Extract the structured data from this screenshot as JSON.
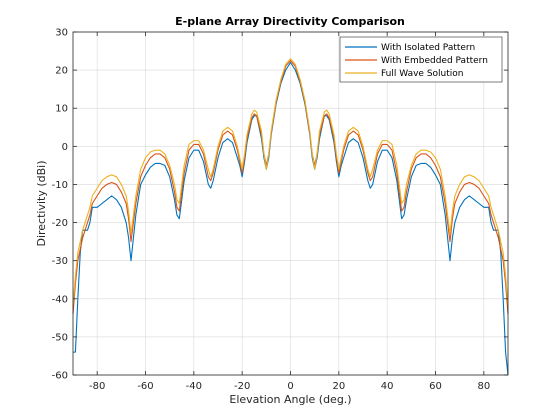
{
  "chart_data": {
    "type": "line",
    "title": "E-plane Array Directivity Comparison",
    "xlabel": "Elevation Angle (deg.)",
    "ylabel": "Directivity (dBi)",
    "xlim": [
      -90,
      90
    ],
    "ylim": [
      -60,
      30
    ],
    "xticks": [
      -80,
      -60,
      -40,
      -20,
      0,
      20,
      40,
      60,
      80
    ],
    "yticks": [
      -60,
      -50,
      -40,
      -30,
      -20,
      -10,
      0,
      10,
      20,
      30
    ],
    "grid": true,
    "legend_position": "top-right",
    "x": [
      -90,
      -89,
      -88,
      -87,
      -86,
      -85,
      -84,
      -83,
      -82,
      -80,
      -78,
      -76,
      -74,
      -72,
      -70,
      -68,
      -67,
      -66,
      -65,
      -64,
      -62,
      -60,
      -58,
      -56,
      -54,
      -52,
      -50,
      -48,
      -47,
      -46,
      -45,
      -44,
      -42,
      -40,
      -38,
      -36,
      -34,
      -33,
      -32,
      -30,
      -28,
      -26,
      -24,
      -22,
      -21,
      -20,
      -19,
      -18,
      -16,
      -15,
      -14,
      -12,
      -11,
      -10,
      -9,
      -8,
      -6,
      -4,
      -2,
      0,
      2,
      4,
      6,
      8,
      9,
      10,
      11,
      12,
      14,
      15,
      16,
      18,
      19,
      20,
      21,
      22,
      24,
      26,
      28,
      30,
      32,
      33,
      34,
      36,
      38,
      40,
      42,
      44,
      45,
      46,
      47,
      48,
      50,
      52,
      54,
      56,
      58,
      60,
      62,
      64,
      65,
      66,
      67,
      68,
      70,
      72,
      74,
      76,
      78,
      80,
      82,
      83,
      84,
      85,
      86,
      87,
      88,
      89,
      90
    ],
    "series": [
      {
        "name": "With Isolated Pattern",
        "color": "#0072BD",
        "values": [
          -54,
          -54,
          -40,
          -28,
          -22,
          -22,
          -22,
          -20,
          -16,
          -16,
          -15,
          -14,
          -13,
          -14,
          -16,
          -20,
          -24,
          -30,
          -24,
          -18,
          -10,
          -7.5,
          -5.5,
          -4.5,
          -4.5,
          -5,
          -8,
          -14,
          -18,
          -19,
          -14,
          -9,
          -3,
          -1,
          -1,
          -4,
          -10,
          -11,
          -9,
          -3,
          1,
          2,
          1,
          -3,
          -5,
          -8,
          -4,
          1,
          7,
          8,
          8,
          2,
          -3,
          -6,
          -3,
          3,
          11,
          16.5,
          20,
          22,
          20,
          16.5,
          11,
          3,
          -3,
          -6,
          -3,
          2,
          8,
          8,
          7,
          1,
          -4,
          -8,
          -5,
          -3,
          1,
          2,
          1,
          -3,
          -9,
          -11,
          -10,
          -4,
          -1,
          -1,
          -3,
          -9,
          -14,
          -19,
          -18,
          -14,
          -8,
          -5,
          -4.5,
          -4.5,
          -5.5,
          -7.5,
          -10,
          -18,
          -24,
          -30,
          -24,
          -20,
          -16,
          -14,
          -13,
          -14,
          -15,
          -16,
          -16,
          -20,
          -22,
          -22,
          -22,
          -28,
          -40,
          -54,
          -60
        ]
      },
      {
        "name": "With Embedded Pattern",
        "color": "#D95319",
        "values": [
          -44,
          -36,
          -30,
          -27,
          -24,
          -22,
          -20,
          -18,
          -15,
          -13,
          -11,
          -10,
          -9.5,
          -10,
          -12,
          -15,
          -19,
          -25,
          -20,
          -15,
          -8,
          -5,
          -3,
          -2,
          -2,
          -3,
          -6,
          -12,
          -16,
          -17,
          -12,
          -7,
          -1,
          0.5,
          0.5,
          -2,
          -8,
          -9,
          -7,
          -1,
          3,
          4,
          3,
          -1,
          -4,
          -7,
          -3,
          2,
          7.5,
          8.5,
          8,
          3,
          -2,
          -5,
          -2,
          3.5,
          11.5,
          17,
          21,
          22.5,
          21,
          17,
          11.5,
          3.5,
          -2,
          -5,
          -2,
          3,
          8,
          8.5,
          7.5,
          2,
          -3,
          -7,
          -4,
          -1,
          3,
          4,
          3,
          -1,
          -7,
          -9,
          -8,
          -2,
          0.5,
          0.5,
          -1,
          -7,
          -12,
          -17,
          -16,
          -12,
          -6,
          -3,
          -2,
          -2,
          -3,
          -5,
          -8,
          -15,
          -20,
          -25,
          -19,
          -15,
          -12,
          -10,
          -9.5,
          -10,
          -11,
          -13,
          -15,
          -18,
          -20,
          -22,
          -24,
          -27,
          -30,
          -36,
          -44
        ]
      },
      {
        "name": "Full Wave Solution",
        "color": "#EDB120",
        "values": [
          -42,
          -34,
          -28,
          -25,
          -22,
          -20,
          -18,
          -16,
          -13,
          -11,
          -9,
          -8,
          -7.5,
          -8,
          -10,
          -13,
          -17,
          -23,
          -18,
          -13,
          -6,
          -3,
          -1.5,
          -1,
          -1,
          -2,
          -5,
          -10,
          -14,
          -15,
          -10,
          -5,
          0.5,
          1.5,
          1.5,
          -1,
          -6,
          -8,
          -6,
          0,
          4,
          5,
          4,
          0,
          -3,
          -6,
          -2,
          3,
          8.5,
          9.5,
          9,
          4,
          -2,
          -6,
          -2,
          4,
          12,
          17.5,
          21.5,
          23,
          21.5,
          17.5,
          12,
          4,
          -2,
          -6,
          -2,
          4,
          9,
          9.5,
          8.5,
          3,
          -2,
          -6,
          -3,
          0,
          4,
          5,
          4,
          0,
          -6,
          -8,
          -6,
          -1,
          1.5,
          1.5,
          0.5,
          -5,
          -10,
          -15,
          -14,
          -10,
          -5,
          -2,
          -1,
          -1,
          -1.5,
          -3,
          -6,
          -13,
          -18,
          -23,
          -17,
          -13,
          -10,
          -8,
          -7.5,
          -8,
          -9,
          -11,
          -13,
          -16,
          -18,
          -20,
          -22,
          -25,
          -28,
          -34,
          -42
        ]
      }
    ]
  }
}
